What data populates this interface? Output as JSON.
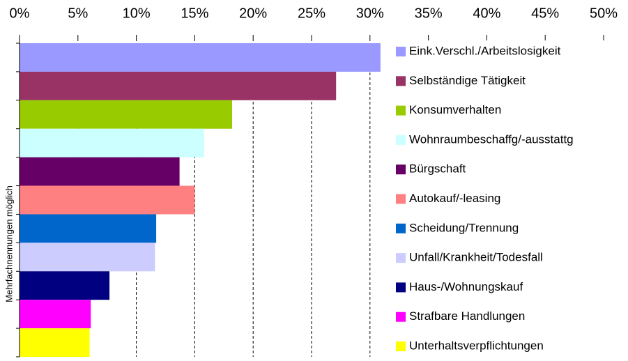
{
  "chart_data": {
    "type": "bar",
    "orientation": "horizontal",
    "y_label": "Mehrfachnennungen möglich",
    "categories": [
      "Eink.Verschl./Arbeitslosigkeit",
      "Selbständige Tätigkeit",
      "Konsumverhalten",
      "Wohnraumbeschaffg/-ausstattg",
      "Bürgschaft",
      "Autokauf/-leasing",
      "Scheidung/Trennung",
      "Unfall/Krankheit/Todesfall",
      "Haus-/Wohnungskauf",
      "Strafbare Handlungen",
      "Unterhaltsverpflichtungen"
    ],
    "values": [
      30.9,
      27.1,
      18.2,
      15.8,
      13.7,
      15.0,
      11.7,
      11.6,
      7.7,
      6.1,
      6.0
    ],
    "colors": [
      "#9999ff",
      "#993366",
      "#99cc00",
      "#ccffff",
      "#660066",
      "#ff8080",
      "#0066cc",
      "#ccccff",
      "#000080",
      "#ff00ff",
      "#ffff00"
    ],
    "xlim": [
      0,
      50
    ],
    "xticks": [
      {
        "value": 0,
        "label": "0%"
      },
      {
        "value": 5,
        "label": "5%"
      },
      {
        "value": 10,
        "label": "10%"
      },
      {
        "value": 15,
        "label": "15%"
      },
      {
        "value": 20,
        "label": "20%"
      },
      {
        "value": 25,
        "label": "25%"
      },
      {
        "value": 30,
        "label": "30%"
      },
      {
        "value": 35,
        "label": "35%"
      },
      {
        "value": 40,
        "label": "40%"
      },
      {
        "value": 45,
        "label": "45%"
      },
      {
        "value": 50,
        "label": "50%"
      }
    ],
    "grid": true,
    "legend": "right"
  }
}
